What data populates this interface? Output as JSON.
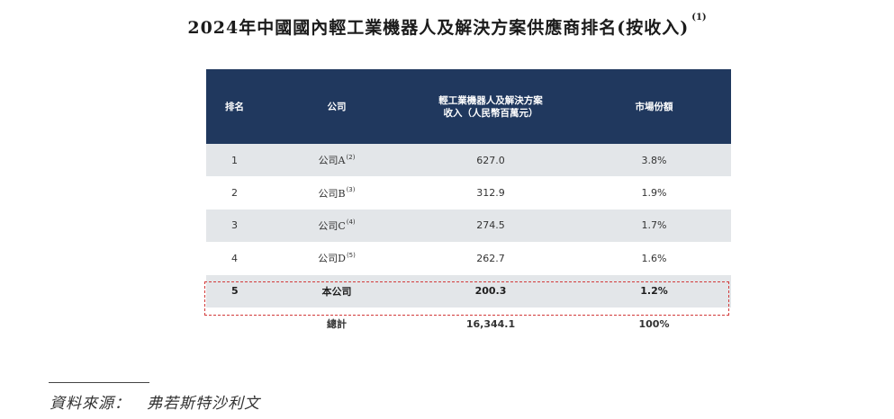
{
  "title": "2024年中國國內輕工業機器人及解決方案供應商排名(按收入)",
  "title_note": "(1)",
  "table": {
    "headers": {
      "rank": "排名",
      "company": "公司",
      "revenue_line1": "輕工業機器人及解決方案",
      "revenue_line2": "收入（人民幣百萬元）",
      "share": "市場份額"
    },
    "rows": [
      {
        "rank": "1",
        "company": "公司A",
        "note": "(2)",
        "revenue": "627.0",
        "share": "3.8%"
      },
      {
        "rank": "2",
        "company": "公司B",
        "note": "(3)",
        "revenue": "312.9",
        "share": "1.9%"
      },
      {
        "rank": "3",
        "company": "公司C",
        "note": "(4)",
        "revenue": "274.5",
        "share": "1.7%"
      },
      {
        "rank": "4",
        "company": "公司D",
        "note": "(5)",
        "revenue": "262.7",
        "share": "1.6%"
      },
      {
        "rank": "5",
        "company": "本公司",
        "note": "",
        "revenue": "200.3",
        "share": "1.2%"
      }
    ],
    "total": {
      "label": "總計",
      "revenue": "16,344.1",
      "share": "100%"
    }
  },
  "source": "資料來源：　弗若斯特沙利文",
  "colors": {
    "header_bg": "#20385e",
    "row_shade": "#e3e6e9",
    "highlight_border": "#d23a3a"
  }
}
